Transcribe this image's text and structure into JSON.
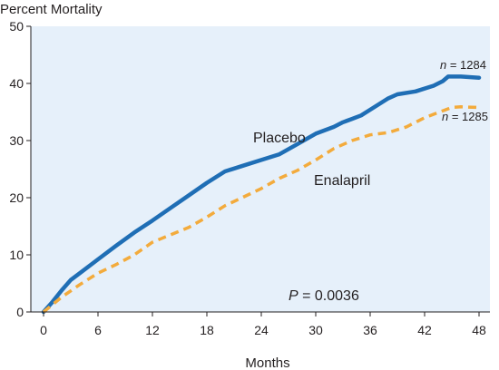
{
  "chart_data": {
    "type": "line",
    "ylabel": "Percent Mortality",
    "xlabel": "Months",
    "xlim": [
      0,
      48
    ],
    "ylim": [
      0,
      50
    ],
    "x_ticks": [
      "0",
      "6",
      "12",
      "18",
      "24",
      "30",
      "36",
      "42",
      "48"
    ],
    "y_ticks": [
      "0",
      "10",
      "20",
      "30",
      "40",
      "50"
    ],
    "grid": false,
    "background_color": "#e6f0fa",
    "series": [
      {
        "name": "Placebo",
        "color": "#1f6eb5",
        "style": "solid",
        "n_label": {
          "prefix": "n",
          "text": " = 1284"
        },
        "points": [
          [
            0,
            0
          ],
          [
            1,
            1.8
          ],
          [
            2,
            3.8
          ],
          [
            3,
            5.6
          ],
          [
            4,
            6.8
          ],
          [
            6,
            9.2
          ],
          [
            8,
            11.6
          ],
          [
            10,
            13.9
          ],
          [
            12,
            16
          ],
          [
            14,
            18.2
          ],
          [
            16,
            20.4
          ],
          [
            18,
            22.6
          ],
          [
            20,
            24.6
          ],
          [
            22,
            25.6
          ],
          [
            24,
            26.6
          ],
          [
            26,
            27.6
          ],
          [
            28,
            29.4
          ],
          [
            30,
            31.2
          ],
          [
            32,
            32.4
          ],
          [
            33,
            33.2
          ],
          [
            34,
            33.8
          ],
          [
            35,
            34.4
          ],
          [
            36,
            35.4
          ],
          [
            38,
            37.4
          ],
          [
            39,
            38.1
          ],
          [
            41,
            38.6
          ],
          [
            43,
            39.6
          ],
          [
            44,
            40.4
          ],
          [
            44.6,
            41.2
          ],
          [
            46,
            41.2
          ],
          [
            48,
            41
          ]
        ]
      },
      {
        "name": "Enalapril",
        "color": "#f3ab3c",
        "style": "dashed",
        "n_label": {
          "prefix": "n",
          "text": " = 1285"
        },
        "points": [
          [
            0,
            0
          ],
          [
            2,
            2.6
          ],
          [
            4,
            4.8
          ],
          [
            6,
            6.8
          ],
          [
            8,
            8.3
          ],
          [
            10,
            10
          ],
          [
            12,
            12.2
          ],
          [
            14,
            13.5
          ],
          [
            16,
            14.8
          ],
          [
            18,
            16.6
          ],
          [
            20,
            18.6
          ],
          [
            22,
            20.1
          ],
          [
            24,
            21.6
          ],
          [
            26,
            23.4
          ],
          [
            28,
            24.8
          ],
          [
            30,
            26.6
          ],
          [
            32,
            28.6
          ],
          [
            34,
            30
          ],
          [
            36,
            31
          ],
          [
            38,
            31.4
          ],
          [
            40,
            32.4
          ],
          [
            42,
            34
          ],
          [
            44,
            35.2
          ],
          [
            45,
            35.8
          ],
          [
            46,
            35.9
          ],
          [
            48,
            35.8
          ]
        ]
      }
    ],
    "annotation": {
      "prefix": "P",
      "text": " = 0.0036"
    }
  }
}
